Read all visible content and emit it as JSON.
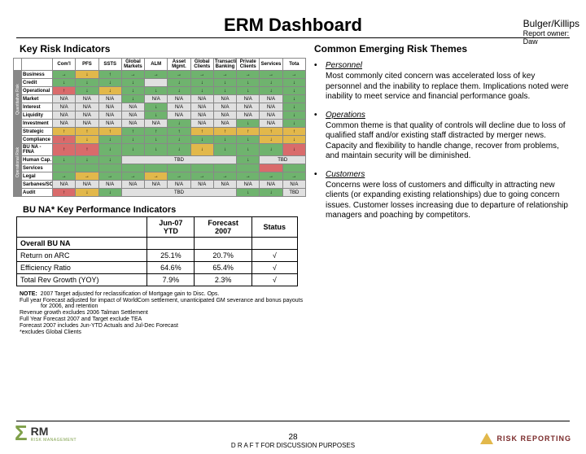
{
  "corner": {
    "line1": "Bulger/Killips",
    "line2": "Report owner:",
    "line3": "Daw"
  },
  "title": "ERM Dashboard",
  "kri": {
    "title": "Key Risk Indicators",
    "columns": [
      "Com'l",
      "PFS",
      "SSTS",
      "Global\nMarkets",
      "ALM",
      "Asset\nMgmt.",
      "Global\nClients",
      "Transaction\nBanking",
      "Private\nClients",
      "Services",
      "Tota"
    ],
    "groups": [
      {
        "label": "Quantitative Risk",
        "rows": [
          {
            "label": "Business",
            "cells": [
              {
                "v": "→",
                "c": "#6fb36e"
              },
              {
                "v": "↓",
                "c": "#e2b84b"
              },
              {
                "v": "↑",
                "c": "#6fb36e"
              },
              {
                "v": "→",
                "c": "#6fb36e"
              },
              {
                "v": "→",
                "c": "#6fb36e"
              },
              {
                "v": "→",
                "c": "#6fb36e"
              },
              {
                "v": "→",
                "c": "#6fb36e"
              },
              {
                "v": "→",
                "c": "#6fb36e"
              },
              {
                "v": "→",
                "c": "#6fb36e"
              },
              {
                "v": "→",
                "c": "#6fb36e"
              },
              {
                "v": "→",
                "c": "#6fb36e"
              }
            ]
          },
          {
            "label": "Credit",
            "cells": [
              {
                "v": "↓",
                "c": "#6fb36e"
              },
              {
                "v": "↓",
                "c": "#6fb36e"
              },
              {
                "v": "↓",
                "c": "#6fb36e"
              },
              {
                "v": "↓",
                "c": "#6fb36e"
              },
              {
                "v": "",
                "c": "#e0e0e0"
              },
              {
                "v": "↓",
                "c": "#6fb36e"
              },
              {
                "v": "↓",
                "c": "#6fb36e"
              },
              {
                "v": "↓",
                "c": "#6fb36e"
              },
              {
                "v": "↓",
                "c": "#6fb36e"
              },
              {
                "v": "↓",
                "c": "#6fb36e"
              },
              {
                "v": "↓",
                "c": "#6fb36e"
              }
            ]
          },
          {
            "label": "Operational",
            "cells": [
              {
                "v": "↑",
                "c": "#d96b6b"
              },
              {
                "v": "↓",
                "c": "#6fb36e"
              },
              {
                "v": "↓",
                "c": "#e2b84b"
              },
              {
                "v": "↓",
                "c": "#6fb36e"
              },
              {
                "v": "↓",
                "c": "#6fb36e"
              },
              {
                "v": "↓",
                "c": "#6fb36e"
              },
              {
                "v": "↓",
                "c": "#6fb36e"
              },
              {
                "v": "↓",
                "c": "#6fb36e"
              },
              {
                "v": "↓",
                "c": "#6fb36e"
              },
              {
                "v": "↓",
                "c": "#6fb36e"
              },
              {
                "v": "↓",
                "c": "#6fb36e"
              }
            ]
          },
          {
            "label": "Market",
            "cells": [
              {
                "v": "N/A",
                "c": "#e0e0e0"
              },
              {
                "v": "N/A",
                "c": "#e0e0e0"
              },
              {
                "v": "N/A",
                "c": "#e0e0e0"
              },
              {
                "v": "↓",
                "c": "#6fb36e"
              },
              {
                "v": "N/A",
                "c": "#e0e0e0"
              },
              {
                "v": "N/A",
                "c": "#e0e0e0"
              },
              {
                "v": "N/A",
                "c": "#e0e0e0"
              },
              {
                "v": "N/A",
                "c": "#e0e0e0"
              },
              {
                "v": "N/A",
                "c": "#e0e0e0"
              },
              {
                "v": "N/A",
                "c": "#e0e0e0"
              },
              {
                "v": "↓",
                "c": "#6fb36e"
              }
            ]
          },
          {
            "label": "Interest",
            "cells": [
              {
                "v": "N/A",
                "c": "#e0e0e0"
              },
              {
                "v": "N/A",
                "c": "#e0e0e0"
              },
              {
                "v": "N/A",
                "c": "#e0e0e0"
              },
              {
                "v": "N/A",
                "c": "#e0e0e0"
              },
              {
                "v": "↓",
                "c": "#6fb36e"
              },
              {
                "v": "N/A",
                "c": "#e0e0e0"
              },
              {
                "v": "N/A",
                "c": "#e0e0e0"
              },
              {
                "v": "N/A",
                "c": "#e0e0e0"
              },
              {
                "v": "N/A",
                "c": "#e0e0e0"
              },
              {
                "v": "N/A",
                "c": "#e0e0e0"
              },
              {
                "v": "↓",
                "c": "#6fb36e"
              }
            ]
          },
          {
            "label": "Liquidity",
            "cells": [
              {
                "v": "N/A",
                "c": "#e0e0e0"
              },
              {
                "v": "N/A",
                "c": "#e0e0e0"
              },
              {
                "v": "N/A",
                "c": "#e0e0e0"
              },
              {
                "v": "N/A",
                "c": "#e0e0e0"
              },
              {
                "v": "↓",
                "c": "#6fb36e"
              },
              {
                "v": "N/A",
                "c": "#e0e0e0"
              },
              {
                "v": "N/A",
                "c": "#e0e0e0"
              },
              {
                "v": "N/A",
                "c": "#e0e0e0"
              },
              {
                "v": "N/A",
                "c": "#e0e0e0"
              },
              {
                "v": "N/A",
                "c": "#e0e0e0"
              },
              {
                "v": "↓",
                "c": "#6fb36e"
              }
            ]
          },
          {
            "label": "Investment",
            "cells": [
              {
                "v": "N/A",
                "c": "#e0e0e0"
              },
              {
                "v": "N/A",
                "c": "#e0e0e0"
              },
              {
                "v": "N/A",
                "c": "#e0e0e0"
              },
              {
                "v": "N/A",
                "c": "#e0e0e0"
              },
              {
                "v": "N/A",
                "c": "#e0e0e0"
              },
              {
                "v": "↓",
                "c": "#6fb36e"
              },
              {
                "v": "N/A",
                "c": "#e0e0e0"
              },
              {
                "v": "N/A",
                "c": "#e0e0e0"
              },
              {
                "v": "↓",
                "c": "#6fb36e"
              },
              {
                "v": "N/A",
                "c": "#e0e0e0"
              },
              {
                "v": "↓",
                "c": "#6fb36e"
              }
            ]
          }
        ]
      },
      {
        "label": "Operational Risk",
        "rows": [
          {
            "label": "Strategic",
            "cells": [
              {
                "v": "↑",
                "c": "#e2b84b"
              },
              {
                "v": "↑",
                "c": "#e2b84b"
              },
              {
                "v": "↑",
                "c": "#e2b84b"
              },
              {
                "v": "↑",
                "c": "#6fb36e"
              },
              {
                "v": "↑",
                "c": "#6fb36e"
              },
              {
                "v": "↑",
                "c": "#6fb36e"
              },
              {
                "v": "↑",
                "c": "#e2b84b"
              },
              {
                "v": "↑",
                "c": "#e2b84b"
              },
              {
                "v": "↑",
                "c": "#e2b84b"
              },
              {
                "v": "↑",
                "c": "#e2b84b"
              },
              {
                "v": "↑",
                "c": "#e2b84b"
              }
            ]
          },
          {
            "label": "Compliance",
            "cells": [
              {
                "v": "↑",
                "c": "#d96b6b"
              },
              {
                "v": "↓",
                "c": "#e2b84b"
              },
              {
                "v": "↓",
                "c": "#6fb36e"
              },
              {
                "v": "↓",
                "c": "#6fb36e"
              },
              {
                "v": "↓",
                "c": "#6fb36e"
              },
              {
                "v": "↓",
                "c": "#6fb36e"
              },
              {
                "v": "↓",
                "c": "#6fb36e"
              },
              {
                "v": "↓",
                "c": "#6fb36e"
              },
              {
                "v": "↓",
                "c": "#6fb36e"
              },
              {
                "v": "↓",
                "c": "#e2b84b"
              },
              {
                "v": "↓",
                "c": "#e2b84b"
              }
            ]
          },
          {
            "label": "BU NA - FINA",
            "cells": [
              {
                "v": "↑",
                "c": "#d96b6b"
              },
              {
                "v": "↑",
                "c": "#d96b6b"
              },
              {
                "v": "↓",
                "c": "#6fb36e"
              },
              {
                "v": "↓",
                "c": "#6fb36e"
              },
              {
                "v": "↓",
                "c": "#6fb36e"
              },
              {
                "v": "↓",
                "c": "#6fb36e"
              },
              {
                "v": "↓",
                "c": "#e2b84b"
              },
              {
                "v": "↓",
                "c": "#6fb36e"
              },
              {
                "v": "↓",
                "c": "#6fb36e"
              },
              {
                "v": "↓",
                "c": "#6fb36e"
              },
              {
                "v": "↓",
                "c": "#d96b6b"
              }
            ]
          },
          {
            "label": "Human Cap.",
            "cells": [
              {
                "v": "↓",
                "c": "#6fb36e"
              },
              {
                "v": "↓",
                "c": "#6fb36e"
              },
              {
                "v": "↓",
                "c": "#6fb36e"
              },
              {
                "v": "TBD",
                "c": "#e0e0e0",
                "span": 5
              },
              {
                "v": "↓",
                "c": "#6fb36e"
              },
              {
                "v": "TBD",
                "c": "#e0e0e0",
                "span": 2
              }
            ]
          },
          {
            "label": "Services",
            "cells": [
              {
                "v": "",
                "c": "#6fb36e"
              },
              {
                "v": "",
                "c": "#6fb36e"
              },
              {
                "v": "",
                "c": "#6fb36e"
              },
              {
                "v": "",
                "c": "#6fb36e"
              },
              {
                "v": "",
                "c": "#6fb36e"
              },
              {
                "v": "",
                "c": "#6fb36e"
              },
              {
                "v": "",
                "c": "#6fb36e"
              },
              {
                "v": "",
                "c": "#6fb36e"
              },
              {
                "v": "",
                "c": "#6fb36e"
              },
              {
                "v": "",
                "c": "#d96b6b"
              },
              {
                "v": "",
                "c": "#6fb36e"
              }
            ]
          },
          {
            "label": "Legal",
            "cells": [
              {
                "v": "→",
                "c": "#6fb36e"
              },
              {
                "v": "→",
                "c": "#e2b84b"
              },
              {
                "v": "→",
                "c": "#6fb36e"
              },
              {
                "v": "→",
                "c": "#6fb36e"
              },
              {
                "v": "→",
                "c": "#e2b84b"
              },
              {
                "v": "→",
                "c": "#6fb36e"
              },
              {
                "v": "→",
                "c": "#6fb36e"
              },
              {
                "v": "→",
                "c": "#6fb36e"
              },
              {
                "v": "→",
                "c": "#6fb36e"
              },
              {
                "v": "→",
                "c": "#6fb36e"
              },
              {
                "v": "→",
                "c": "#6fb36e"
              }
            ]
          },
          {
            "label": "Sarbanes/SOX",
            "cells": [
              {
                "v": "N/A",
                "c": "#e0e0e0"
              },
              {
                "v": "N/A",
                "c": "#e0e0e0"
              },
              {
                "v": "N/A",
                "c": "#e0e0e0"
              },
              {
                "v": "N/A",
                "c": "#e0e0e0"
              },
              {
                "v": "N/A",
                "c": "#e0e0e0"
              },
              {
                "v": "N/A",
                "c": "#e0e0e0"
              },
              {
                "v": "N/A",
                "c": "#e0e0e0"
              },
              {
                "v": "N/A",
                "c": "#e0e0e0"
              },
              {
                "v": "N/A",
                "c": "#e0e0e0"
              },
              {
                "v": "N/A",
                "c": "#e0e0e0"
              },
              {
                "v": "N/A",
                "c": "#e0e0e0"
              }
            ]
          },
          {
            "label": "Audit",
            "cells": [
              {
                "v": "↑",
                "c": "#d96b6b"
              },
              {
                "v": "↓",
                "c": "#e2b84b"
              },
              {
                "v": "↓",
                "c": "#6fb36e"
              },
              {
                "v": "TBD",
                "c": "#e0e0e0",
                "span": 5
              },
              {
                "v": "↓",
                "c": "#6fb36e"
              },
              {
                "v": "↓",
                "c": "#6fb36e"
              },
              {
                "v": "TBD",
                "c": "#e0e0e0"
              }
            ]
          }
        ]
      }
    ]
  },
  "kpi": {
    "title": "BU NA* Key Performance Indicators",
    "headers": [
      "",
      "Jun-07\nYTD",
      "Forecast\n2007",
      "Status"
    ],
    "rows": [
      [
        "Overall BU NA",
        "",
        "",
        ""
      ],
      [
        "Return on ARC",
        "25.1%",
        "20.7%",
        "√"
      ],
      [
        "Efficiency Ratio",
        "64.6%",
        "65.4%",
        "√"
      ],
      [
        "Total Rev Growth (YOY)",
        "7.9%",
        "2.3%",
        "√"
      ]
    ]
  },
  "notes": {
    "label": "NOTE:",
    "lines": [
      "2007 Target adjusted for reclassification of Mortgage gain to Disc. Ops.",
      "Full year Forecast adjusted for impact of WorldCom settlement, unanticipated GM severance and bonus payouts for 2006, and retention",
      "Revenue growth excludes 2006 Talman Settlement",
      "Full Year Forecast 2007 and Target exclude TEA",
      "Forecast 2007 includes Jun-YTD Actuals and Jul-Dec Forecast"
    ],
    "foot": "*excludes Global Clients"
  },
  "themes": {
    "title": "Common Emerging Risk Themes",
    "items": [
      {
        "h": "Personnel",
        "p": "Most commonly cited concern was accelerated loss of key personnel and the inability to replace them. Implications noted were inability to meet service and financial performance goals."
      },
      {
        "h": "Operations",
        "p": "Common theme is that quality of controls will decline due to loss of qualified staff and/or existing staff distracted by merger news. Capacity and flexibility to handle change, recover from problems, and maintain security will be diminished."
      },
      {
        "h": "Customers",
        "p": "Concerns were loss of customers and difficulty in attracting new clients (or expanding existing relationships) due to going concern issues. Customer losses increasing due to departure of relationship managers and poaching by competitors."
      }
    ]
  },
  "footer": {
    "page": "28",
    "draft": "D R A F T  FOR DISCUSSION PURPOSES"
  },
  "logoL": {
    "rm": "RM",
    "sub": "RISK MANAGEMENT"
  },
  "logoR": {
    "txt": "RISK REPORTING"
  }
}
